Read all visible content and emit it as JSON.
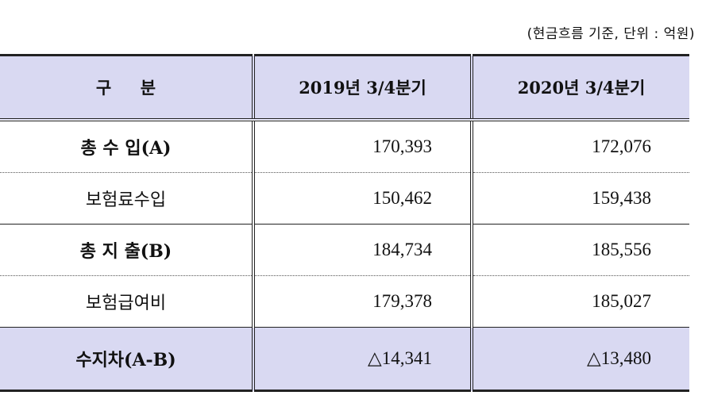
{
  "unit_note": "(현금흐름 기준, 단위 : 억원)",
  "header": {
    "category": "구     분",
    "col_2019": "2019년 3/4분기",
    "col_2020": "2020년 3/4분기"
  },
  "rows": [
    {
      "label": "총 수 입(A)",
      "v2019": "170,393",
      "v2020": "172,076"
    },
    {
      "label": "보험료수입",
      "v2019": "150,462",
      "v2020": "159,438"
    },
    {
      "label": "총 지 출(B)",
      "v2019": "184,734",
      "v2020": "185,556"
    },
    {
      "label": "보험급여비",
      "v2019": "179,378",
      "v2020": "185,027"
    }
  ],
  "total": {
    "label": "수지차(A-B)",
    "v2019": "△14,341",
    "v2020": "△13,480"
  }
}
